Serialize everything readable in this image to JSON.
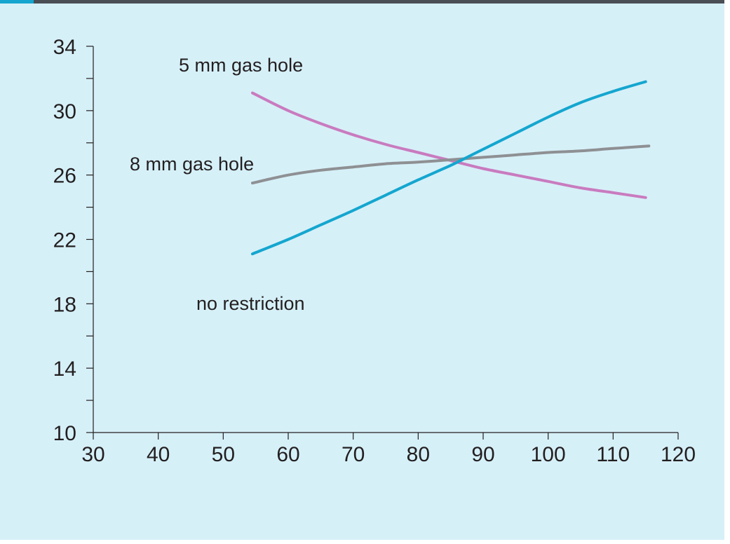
{
  "colors": {
    "background": "#d6f0f8",
    "top_bar": "#4a4f55",
    "top_accent": "#14a6cf"
  },
  "chart_data": {
    "type": "line",
    "title": "",
    "xlabel": "",
    "ylabel": "",
    "xlim": [
      30,
      120
    ],
    "ylim": [
      10,
      34
    ],
    "x_ticks": [
      30,
      40,
      50,
      60,
      70,
      80,
      90,
      100,
      110,
      120
    ],
    "y_ticks": [
      10,
      14,
      18,
      22,
      26,
      30,
      34
    ],
    "y_minor_ticks": [
      12,
      16,
      20,
      24,
      28,
      32
    ],
    "grid": false,
    "legend": "none",
    "series": [
      {
        "name": "5 mm gas hole",
        "color": "#c97bbf",
        "x": [
          54.5,
          60,
          65,
          70,
          75,
          80,
          85,
          90,
          95,
          100,
          105,
          110,
          115
        ],
        "y": [
          31.1,
          30.0,
          29.2,
          28.5,
          27.9,
          27.4,
          26.9,
          26.4,
          26.0,
          25.6,
          25.2,
          24.9,
          24.6
        ]
      },
      {
        "name": "8 mm gas hole",
        "color": "#8e9093",
        "x": [
          54.5,
          60,
          65,
          70,
          75,
          80,
          85,
          90,
          95,
          100,
          105,
          110,
          115.5
        ],
        "y": [
          25.5,
          26.0,
          26.3,
          26.5,
          26.7,
          26.8,
          26.95,
          27.1,
          27.25,
          27.4,
          27.5,
          27.65,
          27.8
        ]
      },
      {
        "name": "no restriction",
        "color": "#14a6cf",
        "x": [
          54.5,
          60,
          65,
          70,
          75,
          80,
          85,
          89,
          95,
          100,
          105,
          110,
          115
        ],
        "y": [
          21.1,
          22.0,
          22.9,
          23.8,
          24.75,
          25.7,
          26.6,
          27.4,
          28.6,
          29.6,
          30.5,
          31.2,
          31.8
        ]
      }
    ]
  }
}
